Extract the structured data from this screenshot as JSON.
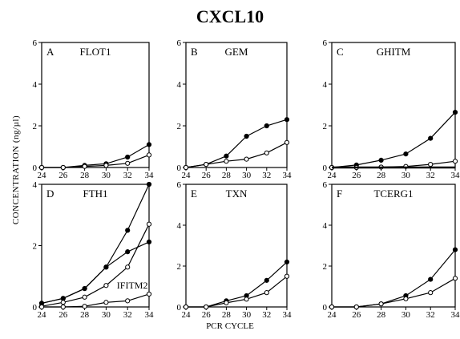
{
  "figure": {
    "title": "CXCL10",
    "ylabel": "CONCENTRATION (ng/µl)",
    "xlabel": "PCR CYCLE"
  },
  "chart_data": [
    {
      "type": "line",
      "letter": "A",
      "gene": "FLOT1",
      "x": [
        24,
        26,
        28,
        30,
        32,
        34
      ],
      "xticks": [
        24,
        26,
        28,
        30,
        32,
        34
      ],
      "ylim": [
        0,
        6
      ],
      "yticks": [
        0,
        2,
        4,
        6
      ],
      "series": [
        {
          "marker": "filled",
          "values": [
            0,
            0,
            0.1,
            0.18,
            0.5,
            1.1
          ]
        },
        {
          "marker": "open",
          "values": [
            0,
            0,
            0.05,
            0.1,
            0.2,
            0.6
          ]
        }
      ],
      "annotations": []
    },
    {
      "type": "line",
      "letter": "B",
      "gene": "GEM",
      "x": [
        24,
        26,
        28,
        30,
        32,
        34
      ],
      "xticks": [
        24,
        26,
        28,
        30,
        32,
        34
      ],
      "ylim": [
        0,
        6
      ],
      "yticks": [
        0,
        2,
        4,
        6
      ],
      "series": [
        {
          "marker": "filled",
          "values": [
            0,
            0.15,
            0.55,
            1.5,
            2.0,
            2.3
          ]
        },
        {
          "marker": "open",
          "values": [
            0,
            0.15,
            0.3,
            0.4,
            0.7,
            1.2
          ]
        }
      ],
      "annotations": []
    },
    {
      "type": "line",
      "letter": "C",
      "gene": "GHITM",
      "x": [
        24,
        26,
        28,
        30,
        32,
        34
      ],
      "xticks": [
        24,
        26,
        28,
        30,
        32,
        34
      ],
      "ylim": [
        0,
        6
      ],
      "yticks": [
        0,
        2,
        4,
        6
      ],
      "series": [
        {
          "marker": "filled",
          "values": [
            0,
            0.12,
            0.35,
            0.65,
            1.4,
            2.65
          ]
        },
        {
          "marker": "open",
          "values": [
            0,
            0,
            0.02,
            0.05,
            0.15,
            0.3
          ]
        },
        {
          "marker": "none",
          "values": [
            0,
            0,
            0,
            0,
            0,
            0
          ]
        }
      ],
      "annotations": []
    },
    {
      "type": "line",
      "letter": "D",
      "gene": "FTH1",
      "x": [
        24,
        26,
        28,
        30,
        32,
        34
      ],
      "xticks": [
        24,
        26,
        28,
        30,
        32,
        34
      ],
      "ylim": [
        0,
        4
      ],
      "yticks": [
        0,
        2,
        4
      ],
      "series": [
        {
          "marker": "filled",
          "values": [
            0.12,
            0.28,
            0.6,
            1.3,
            2.5,
            4.0
          ]
        },
        {
          "marker": "filled",
          "values": [
            0.12,
            0.28,
            0.6,
            1.3,
            1.8,
            2.12
          ]
        },
        {
          "marker": "open",
          "values": [
            0.02,
            0.15,
            0.32,
            0.7,
            1.3,
            2.7
          ]
        },
        {
          "marker": "open",
          "values": [
            0,
            0,
            0.02,
            0.15,
            0.2,
            0.42
          ]
        }
      ],
      "annotations": [
        {
          "text": "IFITM2",
          "x": 31,
          "y": 0.6
        }
      ]
    },
    {
      "type": "line",
      "letter": "E",
      "gene": "TXN",
      "x": [
        24,
        26,
        28,
        30,
        32,
        34
      ],
      "xticks": [
        24,
        26,
        28,
        30,
        32,
        34
      ],
      "ylim": [
        0,
        6
      ],
      "yticks": [
        0,
        2,
        4,
        6
      ],
      "series": [
        {
          "marker": "filled",
          "values": [
            0,
            0,
            0.3,
            0.55,
            1.3,
            2.2
          ]
        },
        {
          "marker": "open",
          "values": [
            0,
            0,
            0.2,
            0.38,
            0.7,
            1.5
          ]
        }
      ],
      "annotations": []
    },
    {
      "type": "line",
      "letter": "F",
      "gene": "TCERG1",
      "x": [
        24,
        26,
        28,
        30,
        32,
        34
      ],
      "xticks": [
        24,
        26,
        28,
        30,
        32,
        34
      ],
      "ylim": [
        0,
        6
      ],
      "yticks": [
        0,
        2,
        4,
        6
      ],
      "series": [
        {
          "marker": "filled",
          "values": [
            0,
            0,
            0.15,
            0.55,
            1.35,
            2.8
          ]
        },
        {
          "marker": "open",
          "values": [
            0,
            0,
            0.15,
            0.4,
            0.7,
            1.4
          ]
        }
      ],
      "annotations": []
    }
  ]
}
